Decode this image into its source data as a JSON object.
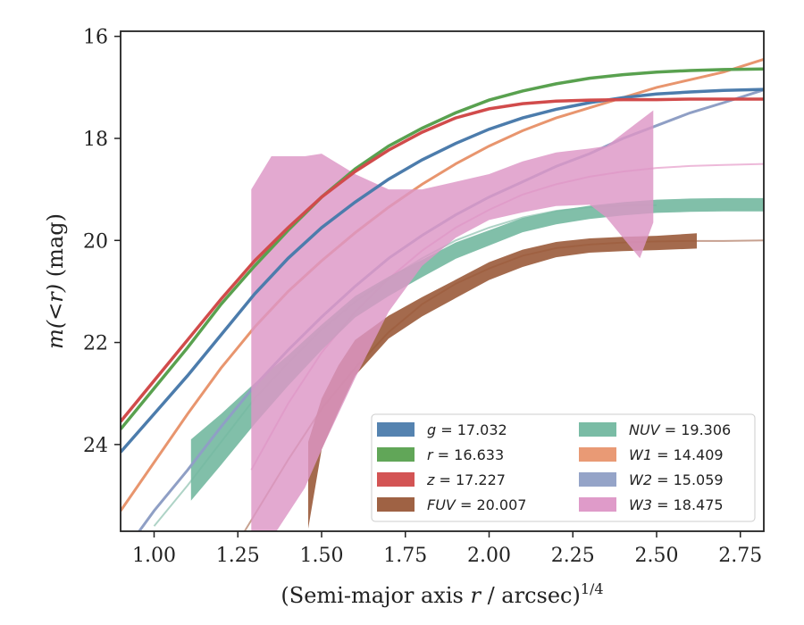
{
  "chart_data": {
    "type": "line",
    "xlabel_main": "(Semi-major axis ",
    "xlabel_r": "r",
    "xlabel_unit": " / arcsec)",
    "xlabel_exp": "1/4",
    "ylabel_main": "m(",
    "ylabel_lt": "<",
    "ylabel_r": "r",
    "ylabel_close": ")",
    "ylabel_unit": " (mag)",
    "xlim": [
      0.9,
      2.82
    ],
    "ylim": [
      25.7,
      15.9
    ],
    "y_inverted": true,
    "x_ticks": [
      1.0,
      1.25,
      1.5,
      1.75,
      2.0,
      2.25,
      2.5,
      2.75
    ],
    "x_tick_labels": [
      "1.00",
      "1.25",
      "1.50",
      "1.75",
      "2.00",
      "2.25",
      "2.50",
      "2.75"
    ],
    "y_ticks": [
      16,
      18,
      20,
      22,
      24
    ],
    "y_tick_labels": [
      "16",
      "18",
      "20",
      "22",
      "24"
    ],
    "legend_position": "lower right",
    "series": [
      {
        "key": "g",
        "name": "g",
        "value": "17.032",
        "color": "#4c7cac",
        "kind": "line",
        "x": [
          0.9,
          1.0,
          1.1,
          1.2,
          1.3,
          1.4,
          1.5,
          1.6,
          1.7,
          1.8,
          1.9,
          2.0,
          2.1,
          2.2,
          2.3,
          2.4,
          2.5,
          2.6,
          2.7,
          2.82
        ],
        "y": [
          24.15,
          23.4,
          22.65,
          21.85,
          21.05,
          20.35,
          19.75,
          19.25,
          18.8,
          18.42,
          18.1,
          17.82,
          17.6,
          17.43,
          17.3,
          17.2,
          17.13,
          17.09,
          17.06,
          17.04
        ]
      },
      {
        "key": "r",
        "name": "r",
        "value": "16.633",
        "color": "#59a14f",
        "kind": "line",
        "x": [
          0.9,
          1.0,
          1.1,
          1.2,
          1.3,
          1.4,
          1.5,
          1.6,
          1.7,
          1.8,
          1.9,
          2.0,
          2.1,
          2.2,
          2.3,
          2.4,
          2.5,
          2.6,
          2.7,
          2.82
        ],
        "y": [
          23.7,
          22.9,
          22.1,
          21.25,
          20.5,
          19.8,
          19.15,
          18.6,
          18.15,
          17.8,
          17.5,
          17.25,
          17.07,
          16.93,
          16.82,
          16.75,
          16.7,
          16.67,
          16.65,
          16.64
        ]
      },
      {
        "key": "z",
        "name": "z",
        "value": "17.227",
        "color": "#d14b4b",
        "kind": "line",
        "x": [
          0.9,
          1.0,
          1.1,
          1.2,
          1.3,
          1.4,
          1.5,
          1.6,
          1.7,
          1.8,
          1.9,
          2.0,
          2.1,
          2.2,
          2.3,
          2.4,
          2.5,
          2.6,
          2.7,
          2.82
        ],
        "y": [
          23.55,
          22.75,
          21.95,
          21.15,
          20.4,
          19.75,
          19.15,
          18.65,
          18.23,
          17.88,
          17.6,
          17.42,
          17.32,
          17.27,
          17.25,
          17.24,
          17.24,
          17.23,
          17.23,
          17.23
        ]
      },
      {
        "key": "FUV",
        "name": "FUV",
        "value": "20.007",
        "color": "#9a5a3a",
        "kind": "band",
        "x": [
          1.46,
          1.5,
          1.55,
          1.6,
          1.7,
          1.8,
          1.9,
          2.0,
          2.1,
          2.2,
          2.3,
          2.4,
          2.5,
          2.62
        ],
        "y": [
          24.8,
          23.6,
          22.9,
          22.3,
          21.7,
          21.3,
          20.95,
          20.6,
          20.35,
          20.18,
          20.1,
          20.07,
          20.05,
          20.01
        ],
        "width": [
          1.7,
          1.0,
          0.9,
          0.7,
          0.45,
          0.38,
          0.36,
          0.35,
          0.34,
          0.3,
          0.28,
          0.28,
          0.28,
          0.3
        ]
      },
      {
        "key": "NUV",
        "name": "NUV",
        "value": "19.306",
        "color": "#73b8a0",
        "kind": "band",
        "x": [
          1.11,
          1.2,
          1.3,
          1.4,
          1.5,
          1.6,
          1.7,
          1.8,
          1.9,
          2.0,
          2.1,
          2.2,
          2.3,
          2.4,
          2.5,
          2.6,
          2.7,
          2.82
        ],
        "y": [
          24.5,
          23.9,
          23.2,
          22.55,
          21.9,
          21.3,
          20.9,
          20.55,
          20.2,
          19.95,
          19.7,
          19.55,
          19.45,
          19.38,
          19.33,
          19.31,
          19.3,
          19.3
        ],
        "width": [
          1.2,
          1.0,
          0.8,
          0.6,
          0.5,
          0.42,
          0.38,
          0.34,
          0.32,
          0.3,
          0.28,
          0.27,
          0.26,
          0.26,
          0.26,
          0.26,
          0.26,
          0.26
        ]
      },
      {
        "key": "W1",
        "name": "W1",
        "value": "14.409",
        "color": "#e8956e",
        "kind": "line",
        "x": [
          0.9,
          1.0,
          1.1,
          1.2,
          1.3,
          1.4,
          1.5,
          1.6,
          1.7,
          1.8,
          1.9,
          2.0,
          2.1,
          2.2,
          2.3,
          2.4,
          2.5,
          2.6,
          2.7,
          2.82
        ],
        "y": [
          25.3,
          24.35,
          23.4,
          22.5,
          21.7,
          21.0,
          20.4,
          19.85,
          19.35,
          18.9,
          18.5,
          18.15,
          17.85,
          17.6,
          17.4,
          17.2,
          17.0,
          16.85,
          16.7,
          16.45
        ]
      },
      {
        "key": "W2",
        "name": "W2",
        "value": "15.059",
        "color": "#8f9fc5",
        "kind": "line",
        "x": [
          0.9,
          1.0,
          1.1,
          1.2,
          1.3,
          1.4,
          1.5,
          1.6,
          1.7,
          1.8,
          1.9,
          2.0,
          2.1,
          2.2,
          2.3,
          2.4,
          2.5,
          2.6,
          2.7,
          2.82
        ],
        "y": [
          26.2,
          25.3,
          24.5,
          23.65,
          22.85,
          22.15,
          21.5,
          20.9,
          20.35,
          19.9,
          19.5,
          19.15,
          18.85,
          18.55,
          18.3,
          18.0,
          17.75,
          17.5,
          17.3,
          17.05
        ]
      },
      {
        "key": "W3",
        "name": "W3",
        "value": "18.475",
        "color": "#dd96c6",
        "kind": "band",
        "x": [
          1.29,
          1.35,
          1.45,
          1.5,
          1.6,
          1.7,
          1.8,
          1.9,
          2.0,
          2.1,
          2.2,
          2.3,
          2.35,
          2.45,
          2.49
        ],
        "y": [
          22.5,
          22.1,
          21.6,
          21.2,
          20.7,
          20.2,
          19.75,
          19.4,
          19.15,
          18.95,
          18.8,
          18.75,
          18.85,
          19.0,
          18.55
        ],
        "width": [
          7.0,
          7.5,
          6.5,
          5.8,
          4.0,
          2.4,
          1.5,
          1.1,
          0.9,
          1.0,
          1.05,
          1.1,
          1.4,
          2.7,
          2.2
        ]
      }
    ],
    "extra_faint_lines": [
      {
        "color": "#e8a8d0",
        "x": [
          1.29,
          1.4,
          1.5,
          1.6,
          1.7,
          1.8,
          1.9,
          2.0,
          2.1,
          2.2,
          2.3,
          2.4,
          2.5,
          2.6,
          2.7,
          2.82
        ],
        "y": [
          24.5,
          23.2,
          22.2,
          21.4,
          20.75,
          20.2,
          19.75,
          19.4,
          19.1,
          18.9,
          18.75,
          18.65,
          18.58,
          18.54,
          18.52,
          18.5
        ]
      },
      {
        "color": "#9ac8b8",
        "x": [
          1.0,
          1.1,
          1.2,
          1.3,
          1.4,
          1.5,
          1.6,
          1.7,
          1.8,
          1.9,
          2.0,
          2.1,
          2.2,
          2.3,
          2.4,
          2.5
        ],
        "y": [
          25.6,
          24.8,
          23.95,
          23.1,
          22.4,
          21.75,
          21.2,
          20.75,
          20.35,
          20.0,
          19.75,
          19.55,
          19.42,
          19.35,
          19.32,
          19.31
        ]
      },
      {
        "color": "#b98a74",
        "x": [
          1.27,
          1.4,
          1.5,
          1.6,
          1.7,
          1.8,
          1.9,
          2.0,
          2.1,
          2.2,
          2.3,
          2.4,
          2.5,
          2.6,
          2.7,
          2.82
        ],
        "y": [
          25.7,
          24.3,
          23.3,
          22.5,
          21.8,
          21.25,
          20.85,
          20.55,
          20.3,
          20.15,
          20.08,
          20.04,
          20.02,
          20.01,
          20.01,
          20.0
        ]
      }
    ]
  }
}
